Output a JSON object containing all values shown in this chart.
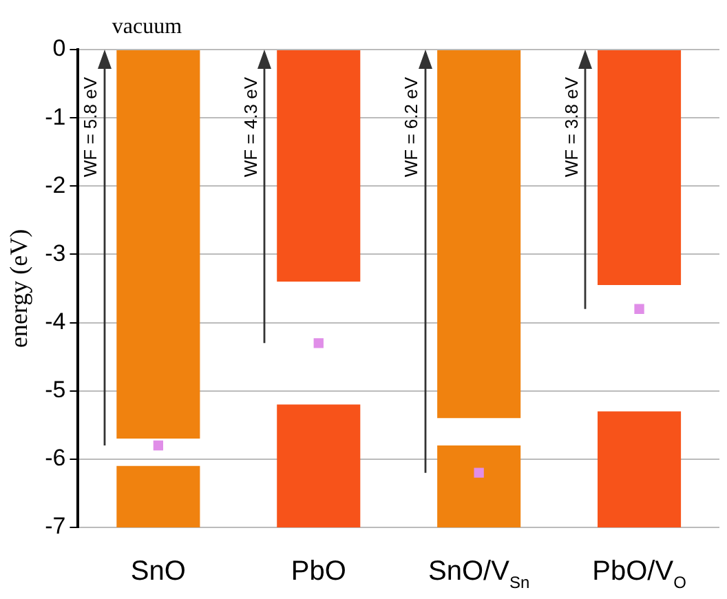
{
  "chart_data": {
    "type": "bar",
    "ylabel": "energy (eV)",
    "categories": [
      "SnO",
      "PbO",
      "SnO/V$_{Sn}$",
      "PbO/V$_{O}$"
    ],
    "series": [
      {
        "base": [
          -5.7,
          -3.4,
          -5.4,
          -3.45
        ],
        "values": [
          5.7,
          3.4,
          5.4,
          3.45
        ],
        "colors": [
          "#f0820f",
          "#f7531a",
          "#f0820f",
          "#f7531a"
        ]
      },
      {
        "base": [
          -7,
          -7,
          -7,
          -7
        ],
        "values": [
          0.9,
          1.8,
          1.2,
          1.7
        ],
        "colors": [
          "#f0820f",
          "#f7531a",
          "#f0820f",
          "#f7531a"
        ]
      },
      {
        "type": "scatter",
        "values": [
          -5.8,
          -4.3,
          -6.2,
          -3.8
        ],
        "color": "#e08ee8"
      }
    ],
    "annotations": [
      "vacuum",
      "WF = 5.8 eV",
      "WF = 4.3 eV",
      "WF = 6.2 eV",
      "WF = 3.8 eV"
    ],
    "marker": "square",
    "ylim": [
      -7,
      0
    ],
    "yticks": [
      -7,
      -6,
      -5,
      -4,
      -3,
      -2,
      -1,
      0
    ],
    "grid": "y",
    "legend": false
  }
}
